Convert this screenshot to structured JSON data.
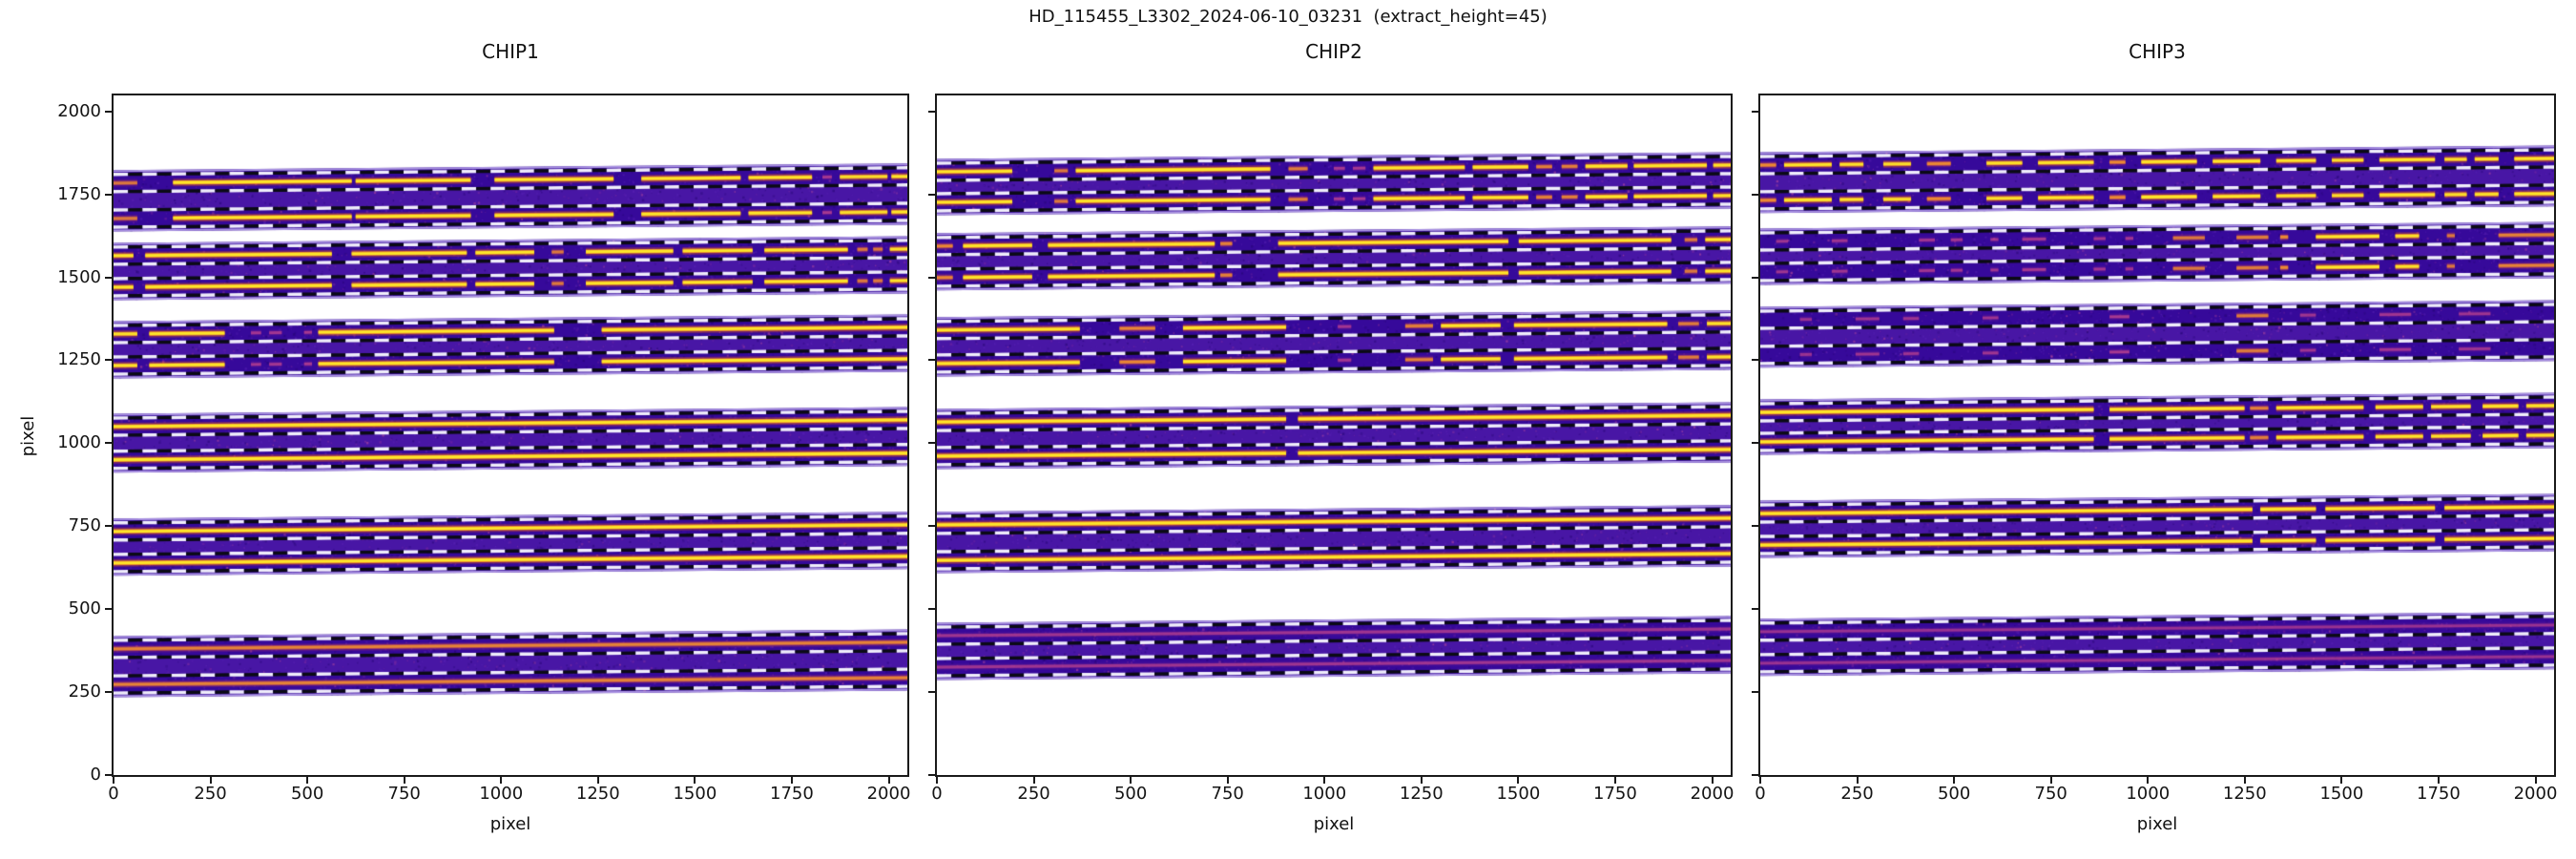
{
  "figure": {
    "title": "HD_115455_L3302_2024-06-10_03231  (extract_height=45)",
    "background": "#ffffff"
  },
  "chart_data": {
    "type": "heatmap",
    "description": "Echelle spectrograph order-tracing plot: three detector panels, each showing horizontal spectral-order image strips (plasma colormap) with two bright traces per order and dashed extraction-window boundary lines",
    "title": "HD_115455_L3302_2024-06-10_03231  (extract_height=45)",
    "xlabel": "pixel",
    "ylabel": "pixel",
    "xlim": [
      0,
      2048
    ],
    "ylim": [
      0,
      2048
    ],
    "xticks": [
      0,
      250,
      500,
      750,
      1000,
      1250,
      1500,
      1750,
      2000
    ],
    "yticks": [
      0,
      250,
      500,
      750,
      1000,
      1250,
      1500,
      1750,
      2000
    ],
    "extract_height": 45,
    "legend": "none",
    "grid": false,
    "colors": {
      "strip_background": "#36099a",
      "strip_mid_overlay": "#662db9",
      "trace_bright_core": "#fde62a",
      "trace_bright_glow": "#f89623",
      "trace_medium_core": "#f2922f",
      "trace_faint_core": "#c9498f",
      "dash_white": "#efedfa",
      "dash_black": "#0b0b15",
      "strip_edge_fringe": "#beacee",
      "axis": "#1a1a1a"
    },
    "panels": [
      {
        "title": "CHIP1",
        "orders": [
          {
            "trace_a": 1784,
            "trace_b": 1677,
            "segments": [
              [
                0,
                0.03,
                0.45
              ],
              [
                0.075,
                0.3,
                0.95
              ],
              [
                0.305,
                0.45,
                0.92
              ],
              [
                0.48,
                0.63,
                0.9
              ],
              [
                0.665,
                0.79,
                0.92
              ],
              [
                0.8,
                0.88,
                0.85
              ],
              [
                0.893,
                0.905,
                0.4
              ],
              [
                0.915,
                0.975,
                0.75
              ],
              [
                0.98,
                1,
                0.85
              ]
            ]
          },
          {
            "trace_a": 1565,
            "trace_b": 1470,
            "segments": [
              [
                0,
                0.025,
                0.85
              ],
              [
                0.04,
                0.275,
                0.95
              ],
              [
                0.3,
                0.445,
                0.95
              ],
              [
                0.456,
                0.53,
                0.9
              ],
              [
                0.552,
                0.567,
                0.45
              ],
              [
                0.595,
                0.705,
                0.95
              ],
              [
                0.717,
                0.805,
                0.9
              ],
              [
                0.82,
                0.925,
                0.93
              ],
              [
                0.937,
                0.95,
                0.45
              ],
              [
                0.957,
                0.969,
                0.45
              ],
              [
                0.978,
                1,
                0.8
              ]
            ]
          },
          {
            "trace_a": 1329,
            "trace_b": 1234,
            "segments": [
              [
                0,
                0.03,
                0.8
              ],
              [
                0.045,
                0.14,
                0.9
              ],
              [
                0.173,
                0.186,
                0.35
              ],
              [
                0.196,
                0.212,
                0.35
              ],
              [
                0.24,
                0.25,
                0.4
              ],
              [
                0.258,
                0.555,
                0.95
              ],
              [
                0.615,
                1,
                0.97
              ]
            ]
          },
          {
            "trace_a": 1050,
            "trace_b": 950,
            "segments": [
              [
                0,
                1,
                1
              ]
            ]
          },
          {
            "trace_a": 734,
            "trace_b": 639,
            "segments": [
              [
                0,
                1,
                0.98
              ]
            ]
          },
          {
            "trace_a": 380,
            "trace_b": 273,
            "segments": [
              [
                0,
                1,
                0.6
              ]
            ]
          }
        ]
      },
      {
        "title": "CHIP2",
        "orders": [
          {
            "trace_a": 1818,
            "trace_b": 1726,
            "segments": [
              [
                0,
                0.095,
                0.9
              ],
              [
                0.148,
                0.165,
                0.45
              ],
              [
                0.175,
                0.42,
                0.95
              ],
              [
                0.443,
                0.467,
                0.5
              ],
              [
                0.5,
                0.514,
                0.4
              ],
              [
                0.524,
                0.54,
                0.4
              ],
              [
                0.55,
                0.665,
                0.9
              ],
              [
                0.675,
                0.745,
                0.85
              ],
              [
                0.755,
                0.775,
                0.55
              ],
              [
                0.787,
                0.807,
                0.55
              ],
              [
                0.817,
                0.87,
                0.9
              ],
              [
                0.878,
                0.97,
                0.92
              ],
              [
                0.978,
                1,
                0.8
              ]
            ]
          },
          {
            "trace_a": 1594,
            "trace_b": 1499,
            "segments": [
              [
                0,
                0.02,
                0.65
              ],
              [
                0.033,
                0.12,
                0.9
              ],
              [
                0.14,
                0.35,
                0.95
              ],
              [
                0.357,
                0.372,
                0.55
              ],
              [
                0.43,
                0.72,
                0.97
              ],
              [
                0.733,
                0.925,
                0.95
              ],
              [
                0.942,
                0.958,
                0.45
              ],
              [
                0.968,
                1,
                0.85
              ]
            ]
          },
          {
            "trace_a": 1341,
            "trace_b": 1240,
            "segments": [
              [
                0,
                0.18,
                0.92
              ],
              [
                0.23,
                0.275,
                0.65
              ],
              [
                0.31,
                0.44,
                0.9
              ],
              [
                0.505,
                0.522,
                0.35
              ],
              [
                0.59,
                0.625,
                0.55
              ],
              [
                0.635,
                0.71,
                0.85
              ],
              [
                0.727,
                0.92,
                0.95
              ],
              [
                0.934,
                0.96,
                0.5
              ],
              [
                0.97,
                1,
                0.8
              ]
            ]
          },
          {
            "trace_a": 1064,
            "trace_b": 961,
            "segments": [
              [
                0,
                0.44,
                1
              ],
              [
                0.455,
                1,
                1
              ]
            ]
          },
          {
            "trace_a": 754,
            "trace_b": 647,
            "segments": [
              [
                0,
                1,
                1
              ]
            ]
          },
          {
            "trace_a": 420,
            "trace_b": 325,
            "segments": [
              [
                0,
                1,
                0.3
              ]
            ]
          }
        ]
      },
      {
        "title": "CHIP3",
        "orders": [
          {
            "trace_a": 1838,
            "trace_b": 1732,
            "segments": [
              [
                0,
                0.02,
                0.7
              ],
              [
                0.03,
                0.09,
                0.85
              ],
              [
                0.1,
                0.13,
                0.8
              ],
              [
                0.155,
                0.19,
                0.75
              ],
              [
                0.21,
                0.24,
                0.7
              ],
              [
                0.285,
                0.33,
                0.8
              ],
              [
                0.35,
                0.42,
                0.9
              ],
              [
                0.44,
                0.46,
                0.7
              ],
              [
                0.48,
                0.55,
                0.9
              ],
              [
                0.57,
                0.63,
                0.85
              ],
              [
                0.65,
                0.7,
                0.8
              ],
              [
                0.72,
                0.76,
                0.75
              ],
              [
                0.78,
                0.85,
                0.9
              ],
              [
                0.862,
                0.89,
                0.75
              ],
              [
                0.9,
                0.93,
                0.8
              ],
              [
                0.95,
                1,
                0.9
              ]
            ]
          },
          {
            "trace_a": 1608,
            "trace_b": 1516,
            "segments": [
              [
                0.02,
                0.035,
                0.3
              ],
              [
                0.09,
                0.11,
                0.3
              ],
              [
                0.2,
                0.22,
                0.35
              ],
              [
                0.24,
                0.255,
                0.35
              ],
              [
                0.29,
                0.3,
                0.3
              ],
              [
                0.33,
                0.36,
                0.4
              ],
              [
                0.42,
                0.435,
                0.35
              ],
              [
                0.46,
                0.47,
                0.35
              ],
              [
                0.52,
                0.56,
                0.45
              ],
              [
                0.6,
                0.64,
                0.5
              ],
              [
                0.655,
                0.665,
                0.7
              ],
              [
                0.7,
                0.78,
                0.85
              ],
              [
                0.8,
                0.83,
                0.8
              ],
              [
                0.865,
                0.875,
                0.45
              ],
              [
                0.93,
                1,
                0.6
              ]
            ]
          },
          {
            "trace_a": 1372,
            "trace_b": 1266,
            "segments": [
              [
                0.05,
                0.065,
                0.25
              ],
              [
                0.12,
                0.15,
                0.3
              ],
              [
                0.18,
                0.2,
                0.28
              ],
              [
                0.28,
                0.3,
                0.3
              ],
              [
                0.44,
                0.465,
                0.4
              ],
              [
                0.6,
                0.64,
                0.5
              ],
              [
                0.68,
                0.7,
                0.3
              ],
              [
                0.78,
                0.82,
                0.35
              ],
              [
                0.88,
                0.92,
                0.3
              ]
            ]
          },
          {
            "trace_a": 1093,
            "trace_b": 1004,
            "segments": [
              [
                0,
                0.42,
                1
              ],
              [
                0.44,
                0.61,
                0.97
              ],
              [
                0.617,
                0.64,
                0.55
              ],
              [
                0.65,
                0.76,
                0.95
              ],
              [
                0.775,
                0.835,
                0.85
              ],
              [
                0.845,
                0.895,
                0.8
              ],
              [
                0.91,
                0.955,
                0.85
              ],
              [
                0.965,
                1,
                0.8
              ]
            ]
          },
          {
            "trace_a": 788,
            "trace_b": 693,
            "segments": [
              [
                0,
                0.62,
                1
              ],
              [
                0.63,
                0.7,
                0.9
              ],
              [
                0.712,
                0.85,
                0.95
              ],
              [
                0.862,
                1,
                0.9
              ]
            ]
          },
          {
            "trace_a": 432,
            "trace_b": 337,
            "segments": [
              [
                0,
                1,
                0.25
              ]
            ]
          }
        ]
      }
    ]
  }
}
